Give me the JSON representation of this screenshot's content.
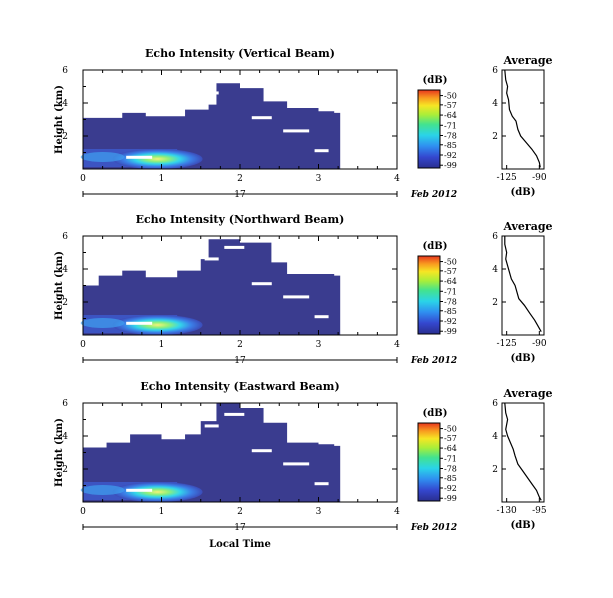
{
  "chart_data": [
    {
      "type": "heatmap",
      "title": "Echo Intensity (Vertical Beam)",
      "ylabel": "Height (km)",
      "xlim": [
        0,
        4
      ],
      "ylim": [
        0,
        6
      ],
      "x_ticks": [
        "0",
        "1",
        "2",
        "3",
        "4"
      ],
      "y_ticks": [
        "2",
        "4",
        "6"
      ],
      "date_ticks": [
        "17"
      ],
      "date_label": "Feb 2012",
      "colorbar": {
        "unit": "(dB)",
        "ticks": [
          "-50",
          "-57",
          "-64",
          "-71",
          "-78",
          "-85",
          "-92",
          "-99"
        ]
      },
      "echo_top_km": [
        [
          0,
          3.1
        ],
        [
          0.4,
          3.1
        ],
        [
          0.5,
          3.4
        ],
        [
          0.8,
          3.2
        ],
        [
          1.3,
          3.6
        ],
        [
          1.5,
          3.6
        ],
        [
          1.6,
          3.9
        ],
        [
          1.7,
          5.2
        ],
        [
          2.0,
          4.9
        ],
        [
          2.3,
          4.1
        ],
        [
          2.6,
          3.7
        ],
        [
          3.0,
          3.5
        ],
        [
          3.2,
          3.4
        ]
      ],
      "average_profile": {
        "title": "Average",
        "xlabel": "(dB)",
        "x_ticks": [
          "-125",
          "-90"
        ],
        "xlim": [
          -130,
          -85
        ],
        "y_ticks": [
          "2",
          "4",
          "6"
        ],
        "ylim": [
          0,
          6
        ],
        "points": [
          [
            -127,
            6
          ],
          [
            -126,
            5.4
          ],
          [
            -124,
            5.0
          ],
          [
            -125,
            4.6
          ],
          [
            -123,
            4.2
          ],
          [
            -122,
            3.6
          ],
          [
            -119,
            3.2
          ],
          [
            -115,
            2.9
          ],
          [
            -113,
            2.4
          ],
          [
            -110,
            2.0
          ],
          [
            -104,
            1.6
          ],
          [
            -98,
            1.2
          ],
          [
            -93,
            0.8
          ],
          [
            -90,
            0.4
          ],
          [
            -89,
            0.1
          ]
        ]
      }
    },
    {
      "type": "heatmap",
      "title": "Echo Intensity (Northward Beam)",
      "ylabel": "Height (km)",
      "xlim": [
        0,
        4
      ],
      "ylim": [
        0,
        6
      ],
      "x_ticks": [
        "0",
        "1",
        "2",
        "3",
        "4"
      ],
      "y_ticks": [
        "2",
        "4",
        "6"
      ],
      "date_ticks": [
        "17"
      ],
      "date_label": "Feb 2012",
      "colorbar": {
        "unit": "(dB)",
        "ticks": [
          "-50",
          "-57",
          "-64",
          "-71",
          "-78",
          "-85",
          "-92",
          "-99"
        ]
      },
      "echo_top_km": [
        [
          0,
          3.0
        ],
        [
          0.2,
          3.6
        ],
        [
          0.5,
          3.9
        ],
        [
          0.8,
          3.5
        ],
        [
          1.2,
          3.9
        ],
        [
          1.5,
          4.6
        ],
        [
          1.6,
          5.8
        ],
        [
          2.0,
          5.6
        ],
        [
          2.4,
          4.4
        ],
        [
          2.6,
          3.7
        ],
        [
          3.0,
          3.7
        ],
        [
          3.2,
          3.6
        ]
      ],
      "average_profile": {
        "title": "Average",
        "xlabel": "(dB)",
        "x_ticks": [
          "-125",
          "-90"
        ],
        "xlim": [
          -130,
          -85
        ],
        "y_ticks": [
          "2",
          "4",
          "6"
        ],
        "ylim": [
          0,
          6
        ],
        "points": [
          [
            -127,
            6
          ],
          [
            -127,
            5.5
          ],
          [
            -125,
            5.0
          ],
          [
            -126,
            4.6
          ],
          [
            -124,
            4.2
          ],
          [
            -122,
            3.8
          ],
          [
            -120,
            3.4
          ],
          [
            -116,
            3.0
          ],
          [
            -114,
            2.6
          ],
          [
            -112,
            2.2
          ],
          [
            -106,
            1.8
          ],
          [
            -100,
            1.3
          ],
          [
            -95,
            0.9
          ],
          [
            -92,
            0.6
          ],
          [
            -88,
            0.2
          ]
        ]
      }
    },
    {
      "type": "heatmap",
      "title": "Echo Intensity (Eastward Beam)",
      "ylabel": "Height (km)",
      "xlabel": "Local Time",
      "xlim": [
        0,
        4
      ],
      "ylim": [
        0,
        6
      ],
      "x_ticks": [
        "0",
        "1",
        "2",
        "3",
        "4"
      ],
      "y_ticks": [
        "2",
        "4",
        "6"
      ],
      "date_ticks": [
        "17"
      ],
      "date_label": "Feb 2012",
      "colorbar": {
        "unit": "(dB)",
        "ticks": [
          "-50",
          "-57",
          "-64",
          "-71",
          "-78",
          "-85",
          "-92",
          "-99"
        ]
      },
      "echo_top_km": [
        [
          0,
          3.3
        ],
        [
          0.3,
          3.6
        ],
        [
          0.6,
          4.1
        ],
        [
          1.0,
          3.8
        ],
        [
          1.3,
          4.1
        ],
        [
          1.5,
          4.9
        ],
        [
          1.7,
          6.0
        ],
        [
          2.0,
          5.7
        ],
        [
          2.3,
          4.8
        ],
        [
          2.6,
          3.6
        ],
        [
          3.0,
          3.5
        ],
        [
          3.2,
          3.4
        ]
      ],
      "average_profile": {
        "title": "Average",
        "xlabel": "(dB)",
        "x_ticks": [
          "-130",
          "-95"
        ],
        "xlim": [
          -135,
          -90
        ],
        "y_ticks": [
          "2",
          "4",
          "6"
        ],
        "ylim": [
          0,
          6
        ],
        "points": [
          [
            -132,
            6
          ],
          [
            -131,
            5.4
          ],
          [
            -129,
            5.0
          ],
          [
            -131,
            4.4
          ],
          [
            -129,
            4.0
          ],
          [
            -126,
            3.6
          ],
          [
            -123,
            3.2
          ],
          [
            -121,
            2.8
          ],
          [
            -118,
            2.3
          ],
          [
            -113,
            1.9
          ],
          [
            -108,
            1.5
          ],
          [
            -103,
            1.1
          ],
          [
            -98,
            0.7
          ],
          [
            -95,
            0.3
          ],
          [
            -93,
            0.1
          ]
        ]
      }
    }
  ]
}
